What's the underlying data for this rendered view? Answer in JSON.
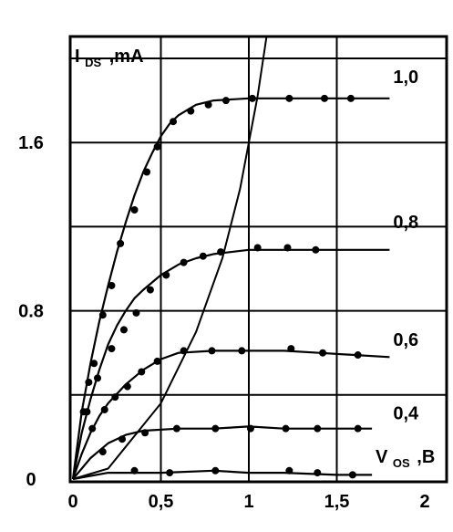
{
  "chart_data": {
    "type": "line",
    "title": "",
    "ylabel": {
      "main": "I",
      "sub": "DS",
      "unit": ",mA"
    },
    "xlabel": {
      "main": "V",
      "sub": "OS",
      "unit": ",B"
    },
    "xlim": [
      0,
      2
    ],
    "ylim": [
      0,
      2.1
    ],
    "x_ticks": [
      {
        "value": 0,
        "label": "0"
      },
      {
        "value": 0.5,
        "label": "0,5"
      },
      {
        "value": 1,
        "label": "1"
      },
      {
        "value": 1.5,
        "label": "1,5"
      },
      {
        "value": 2,
        "label": "2"
      }
    ],
    "y_ticks": [
      {
        "value": 0,
        "label": "0"
      },
      {
        "value": 0.8,
        "label": "0.8"
      },
      {
        "value": 1.6,
        "label": "1.6"
      }
    ],
    "grid": true,
    "series": [
      {
        "name": "1,0",
        "curve": [
          [
            0,
            0
          ],
          [
            0.05,
            0.32
          ],
          [
            0.1,
            0.55
          ],
          [
            0.15,
            0.75
          ],
          [
            0.2,
            0.92
          ],
          [
            0.25,
            1.08
          ],
          [
            0.3,
            1.22
          ],
          [
            0.35,
            1.35
          ],
          [
            0.4,
            1.46
          ],
          [
            0.45,
            1.55
          ],
          [
            0.5,
            1.63
          ],
          [
            0.55,
            1.69
          ],
          [
            0.6,
            1.73
          ],
          [
            0.7,
            1.78
          ],
          [
            0.8,
            1.8
          ],
          [
            1.0,
            1.81
          ],
          [
            1.2,
            1.81
          ],
          [
            1.4,
            1.81
          ],
          [
            1.6,
            1.81
          ],
          [
            1.8,
            1.81
          ]
        ],
        "points": [
          [
            0.06,
            0.32
          ],
          [
            0.09,
            0.46
          ],
          [
            0.12,
            0.55
          ],
          [
            0.17,
            0.78
          ],
          [
            0.22,
            0.92
          ],
          [
            0.27,
            1.12
          ],
          [
            0.35,
            1.28
          ],
          [
            0.42,
            1.46
          ],
          [
            0.48,
            1.58
          ],
          [
            0.57,
            1.7
          ],
          [
            0.67,
            1.75
          ],
          [
            0.77,
            1.78
          ],
          [
            0.87,
            1.8
          ],
          [
            1.02,
            1.81
          ],
          [
            1.23,
            1.81
          ],
          [
            1.43,
            1.81
          ],
          [
            1.58,
            1.81
          ]
        ]
      },
      {
        "name": "0,8",
        "curve": [
          [
            0,
            0
          ],
          [
            0.05,
            0.22
          ],
          [
            0.1,
            0.38
          ],
          [
            0.15,
            0.52
          ],
          [
            0.2,
            0.64
          ],
          [
            0.25,
            0.73
          ],
          [
            0.3,
            0.8
          ],
          [
            0.35,
            0.86
          ],
          [
            0.4,
            0.9
          ],
          [
            0.5,
            0.97
          ],
          [
            0.6,
            1.02
          ],
          [
            0.7,
            1.05
          ],
          [
            0.8,
            1.07
          ],
          [
            1.0,
            1.09
          ],
          [
            1.2,
            1.09
          ],
          [
            1.4,
            1.09
          ],
          [
            1.6,
            1.09
          ],
          [
            1.8,
            1.09
          ]
        ],
        "points": [
          [
            0.08,
            0.32
          ],
          [
            0.14,
            0.48
          ],
          [
            0.22,
            0.62
          ],
          [
            0.29,
            0.71
          ],
          [
            0.36,
            0.79
          ],
          [
            0.44,
            0.9
          ],
          [
            0.53,
            0.97
          ],
          [
            0.63,
            1.03
          ],
          [
            0.74,
            1.06
          ],
          [
            0.84,
            1.08
          ],
          [
            1.05,
            1.1
          ],
          [
            1.22,
            1.1
          ],
          [
            1.38,
            1.09
          ]
        ]
      },
      {
        "name": "0,6",
        "curve": [
          [
            0,
            0
          ],
          [
            0.05,
            0.12
          ],
          [
            0.1,
            0.22
          ],
          [
            0.15,
            0.3
          ],
          [
            0.2,
            0.36
          ],
          [
            0.3,
            0.45
          ],
          [
            0.4,
            0.52
          ],
          [
            0.5,
            0.57
          ],
          [
            0.6,
            0.6
          ],
          [
            0.8,
            0.61
          ],
          [
            1.0,
            0.61
          ],
          [
            1.2,
            0.61
          ],
          [
            1.4,
            0.6
          ],
          [
            1.6,
            0.59
          ],
          [
            1.8,
            0.58
          ]
        ],
        "points": [
          [
            0.11,
            0.24
          ],
          [
            0.18,
            0.33
          ],
          [
            0.24,
            0.39
          ],
          [
            0.31,
            0.44
          ],
          [
            0.39,
            0.51
          ],
          [
            0.48,
            0.56
          ],
          [
            0.63,
            0.61
          ],
          [
            0.79,
            0.61
          ],
          [
            0.96,
            0.61
          ],
          [
            1.24,
            0.62
          ],
          [
            1.42,
            0.6
          ],
          [
            1.62,
            0.59
          ]
        ]
      },
      {
        "name": "0,4",
        "curve": [
          [
            0,
            0
          ],
          [
            0.1,
            0.1
          ],
          [
            0.2,
            0.17
          ],
          [
            0.3,
            0.21
          ],
          [
            0.4,
            0.23
          ],
          [
            0.6,
            0.24
          ],
          [
            0.8,
            0.24
          ],
          [
            1.0,
            0.25
          ],
          [
            1.2,
            0.24
          ],
          [
            1.4,
            0.24
          ],
          [
            1.6,
            0.24
          ],
          [
            1.7,
            0.24
          ]
        ],
        "points": [
          [
            0.17,
            0.13
          ],
          [
            0.28,
            0.19
          ],
          [
            0.41,
            0.22
          ],
          [
            0.59,
            0.24
          ],
          [
            0.81,
            0.24
          ],
          [
            1.01,
            0.24
          ],
          [
            1.21,
            0.24
          ],
          [
            1.39,
            0.24
          ],
          [
            1.62,
            0.24
          ]
        ]
      },
      {
        "name": "",
        "curve": [
          [
            0,
            0
          ],
          [
            0.2,
            0.03
          ],
          [
            0.5,
            0.03
          ],
          [
            0.8,
            0.04
          ],
          [
            1.0,
            0.03
          ],
          [
            1.2,
            0.03
          ],
          [
            1.5,
            0.02
          ],
          [
            1.7,
            0.02
          ]
        ],
        "points": [
          [
            0.35,
            0.04
          ],
          [
            0.55,
            0.03
          ],
          [
            0.81,
            0.04
          ],
          [
            1.23,
            0.04
          ],
          [
            1.39,
            0.03
          ],
          [
            1.59,
            0.02
          ]
        ]
      }
    ],
    "saturation_line": [
      [
        0,
        0
      ],
      [
        0.2,
        0.05
      ],
      [
        0.5,
        0.36
      ],
      [
        0.7,
        0.7
      ],
      [
        0.85,
        1.05
      ],
      [
        0.95,
        1.38
      ],
      [
        1.05,
        1.82
      ],
      [
        1.1,
        2.1
      ]
    ]
  }
}
